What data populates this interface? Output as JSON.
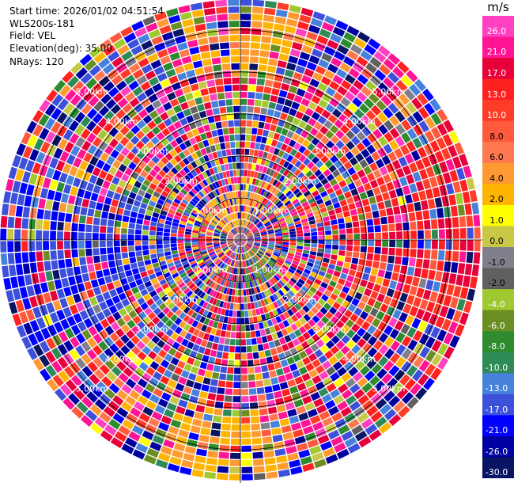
{
  "header": {
    "start_time": "Start time: 2026/01/02 04:51:54",
    "instrument": "WLS200s-181",
    "field": "Field: VEL",
    "elevation": "Elevation(deg): 35.00",
    "nrays": "NRays: 120"
  },
  "chart_data": {
    "type": "heatmap",
    "projection": "polar-ppi",
    "field": "VEL",
    "units": "m/s",
    "elevation_deg": 35.0,
    "n_rays": 120,
    "range_ring_labels": [
      "1.00km",
      "2.00km",
      "3.00km",
      "4.00km",
      "5.00km"
    ],
    "range_rings_km": [
      1,
      2,
      3,
      4,
      5
    ],
    "max_range_km": 5.75,
    "colorbar": {
      "title": "m/s",
      "tick_labels": [
        "26.0",
        "21.0",
        "17.0",
        "13.0",
        "10.0",
        "8.0",
        "6.0",
        "4.0",
        "2.0",
        "1.0",
        "0.0",
        "-1.0",
        "-2.0",
        "-4.0",
        "-6.0",
        "-8.0",
        "-10.0",
        "-13.0",
        "-17.0",
        "-21.0",
        "-26.0",
        "-30.0"
      ],
      "boundaries": [
        30,
        26,
        21,
        17,
        13,
        10,
        8,
        6,
        4,
        2,
        1,
        0,
        -1,
        -2,
        -4,
        -6,
        -8,
        -10,
        -13,
        -17,
        -21,
        -26,
        -30
      ],
      "colors": [
        "#ff40c0",
        "#ff1493",
        "#e8003a",
        "#ff2020",
        "#ff3c28",
        "#ff5a3c",
        "#ff7850",
        "#ff9a32",
        "#ffb400",
        "#ffff00",
        "#c8c846",
        "#80808c",
        "#606060",
        "#a0c830",
        "#6b8e23",
        "#2e8b2e",
        "#2e8b57",
        "#4682dc",
        "#3c50dc",
        "#0000ff",
        "#0000a0",
        "#0a1464"
      ]
    },
    "dominant_patterns": [
      {
        "sector": "west",
        "azimuth_deg": [
          240,
          290
        ],
        "range_km": [
          1.5,
          5.75
        ],
        "value_range": [
          -21,
          -13
        ]
      },
      {
        "sector": "east",
        "azimuth_deg": [
          60,
          115
        ],
        "range_km": [
          2.5,
          5.75
        ],
        "value_range": [
          8,
          21
        ]
      },
      {
        "sector": "north",
        "azimuth_deg": [
          345,
          15
        ],
        "range_km": [
          4.0,
          5.5
        ],
        "value_range": [
          2,
          6
        ]
      },
      {
        "sector": "south",
        "azimuth_deg": [
          165,
          200
        ],
        "range_km": [
          4.0,
          5.5
        ],
        "value_range": [
          2,
          6
        ]
      },
      {
        "sector": "north-near",
        "azimuth_deg": [
          300,
          30
        ],
        "range_km": [
          0.3,
          1.2
        ],
        "value_range": [
          2,
          6
        ]
      },
      {
        "sector": "south-east-near",
        "azimuth_deg": [
          120,
          170
        ],
        "range_km": [
          0.3,
          1.2
        ],
        "value_range": [
          -8,
          -4
        ]
      }
    ]
  }
}
